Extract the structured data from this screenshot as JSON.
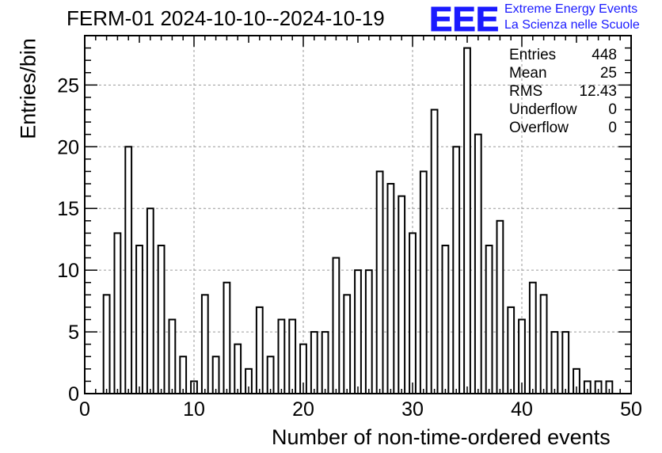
{
  "title": "FERM-01 2024-10-10--2024-10-19",
  "logo": {
    "mark": "EEE",
    "line1": "Extreme Energy Events",
    "line2": "La Scienza nelle Scuole",
    "color": "#1a1aff"
  },
  "stats": [
    {
      "label": "Entries",
      "value": "448"
    },
    {
      "label": "Mean",
      "value": "25"
    },
    {
      "label": "RMS",
      "value": "12.43"
    },
    {
      "label": "Underflow",
      "value": "0"
    },
    {
      "label": "Overflow",
      "value": "0"
    }
  ],
  "chart_data": {
    "type": "bar",
    "title": "FERM-01 2024-10-10--2024-10-19",
    "xlabel": "Number of non-time-ordered events",
    "ylabel": "Entries/bin",
    "xlim": [
      0,
      50
    ],
    "ylim": [
      0,
      29
    ],
    "xticks": [
      0,
      10,
      20,
      30,
      40,
      50
    ],
    "yticks": [
      0,
      5,
      10,
      15,
      20,
      25
    ],
    "grid": true,
    "bin_width": 1,
    "bars": [
      {
        "x": 2,
        "y": 8
      },
      {
        "x": 3,
        "y": 13
      },
      {
        "x": 4,
        "y": 20
      },
      {
        "x": 5,
        "y": 12
      },
      {
        "x": 6,
        "y": 15
      },
      {
        "x": 7,
        "y": 12
      },
      {
        "x": 8,
        "y": 6
      },
      {
        "x": 9,
        "y": 3
      },
      {
        "x": 10,
        "y": 1
      },
      {
        "x": 11,
        "y": 8
      },
      {
        "x": 12,
        "y": 3
      },
      {
        "x": 13,
        "y": 9
      },
      {
        "x": 14,
        "y": 4
      },
      {
        "x": 15,
        "y": 2
      },
      {
        "x": 16,
        "y": 7
      },
      {
        "x": 17,
        "y": 3
      },
      {
        "x": 18,
        "y": 6
      },
      {
        "x": 19,
        "y": 6
      },
      {
        "x": 20,
        "y": 4
      },
      {
        "x": 21,
        "y": 5
      },
      {
        "x": 22,
        "y": 5
      },
      {
        "x": 23,
        "y": 11
      },
      {
        "x": 24,
        "y": 8
      },
      {
        "x": 25,
        "y": 10
      },
      {
        "x": 26,
        "y": 10
      },
      {
        "x": 27,
        "y": 18
      },
      {
        "x": 28,
        "y": 17
      },
      {
        "x": 29,
        "y": 16
      },
      {
        "x": 30,
        "y": 13
      },
      {
        "x": 31,
        "y": 18
      },
      {
        "x": 32,
        "y": 23
      },
      {
        "x": 33,
        "y": 12
      },
      {
        "x": 34,
        "y": 20
      },
      {
        "x": 35,
        "y": 28
      },
      {
        "x": 36,
        "y": 21
      },
      {
        "x": 37,
        "y": 12
      },
      {
        "x": 38,
        "y": 14
      },
      {
        "x": 39,
        "y": 7
      },
      {
        "x": 40,
        "y": 6
      },
      {
        "x": 41,
        "y": 9
      },
      {
        "x": 42,
        "y": 8
      },
      {
        "x": 43,
        "y": 5
      },
      {
        "x": 44,
        "y": 5
      },
      {
        "x": 45,
        "y": 2
      },
      {
        "x": 46,
        "y": 1
      },
      {
        "x": 47,
        "y": 1
      },
      {
        "x": 48,
        "y": 1
      }
    ]
  }
}
